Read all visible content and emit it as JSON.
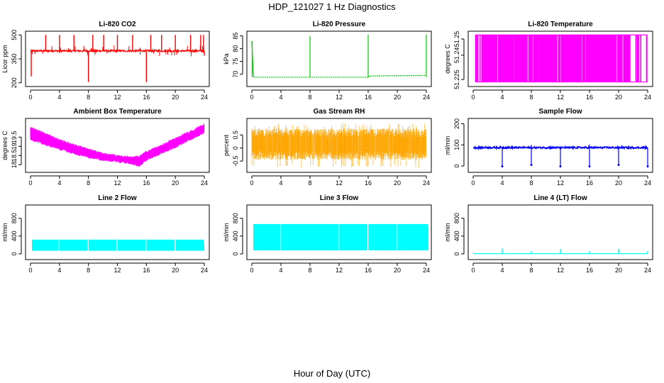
{
  "figure": {
    "title": "HDP_121027  1 Hz Diagnostics",
    "xlabel": "Hour of Day (UTC)"
  },
  "chart_data": [
    {
      "id": "co2",
      "type": "line",
      "title": "Li-820 CO2",
      "ylabel": "Licor ppm",
      "color": "#ff0000",
      "xlim": [
        0,
        24
      ],
      "ylim": [
        190,
        510
      ],
      "xticks": [
        0,
        4,
        8,
        12,
        16,
        20,
        24
      ],
      "yticks": [
        200,
        350,
        500
      ],
      "pattern": "spiky",
      "series": {
        "baseline": 400,
        "noise": 6,
        "spikes_up": [
          [
            2.1,
            500
          ],
          [
            4,
            500
          ],
          [
            6,
            500
          ],
          [
            8.6,
            500
          ],
          [
            10.1,
            500
          ],
          [
            12,
            500
          ],
          [
            14.1,
            500
          ],
          [
            16.6,
            500
          ],
          [
            18.1,
            500
          ],
          [
            20,
            500
          ],
          [
            22.1,
            500
          ],
          [
            23.5,
            500
          ],
          [
            23.9,
            500
          ]
        ],
        "spikes_down": [
          [
            0.1,
            240
          ],
          [
            8,
            205
          ],
          [
            16,
            205
          ],
          [
            24,
            370
          ]
        ]
      }
    },
    {
      "id": "pressure",
      "type": "line",
      "title": "Li-820 Pressure",
      "ylabel": "kPa",
      "color": "#00cc00",
      "xlim": [
        0,
        24
      ],
      "ylim": [
        66,
        86
      ],
      "xticks": [
        0,
        4,
        8,
        12,
        16,
        20,
        24
      ],
      "yticks": [
        70,
        75,
        80,
        85
      ],
      "pattern": "pressure",
      "series": {
        "segments": [
          [
            0.3,
            68.8
          ],
          [
            16.1,
            68.8
          ],
          [
            16.2,
            69.3
          ],
          [
            23.9,
            69.5
          ]
        ],
        "spikes": [
          [
            0.05,
            83
          ],
          [
            8,
            85
          ],
          [
            16,
            85.5
          ],
          [
            24,
            85.5
          ]
        ]
      }
    },
    {
      "id": "licor_temp",
      "type": "line",
      "title": "Li-820 Temperature",
      "ylabel": "degrees C",
      "color": "#ff00ff",
      "xlim": [
        0,
        24
      ],
      "ylim": [
        51.222,
        51.2535
      ],
      "xticks": [
        0,
        4,
        8,
        12,
        16,
        20,
        24
      ],
      "yticks": [
        51.225,
        51.24,
        51.25
      ],
      "pattern": "quantized",
      "series": {
        "levels": [
          51.2235,
          51.2525
        ],
        "gaps": [
          [
            0.7,
            0.9
          ],
          [
            1,
            1.15
          ],
          [
            3.3,
            3.45
          ],
          [
            5.55,
            5.62
          ],
          [
            7.45,
            7.6
          ],
          [
            8.15,
            8.25
          ],
          [
            9,
            9.08
          ],
          [
            11.55,
            11.7
          ],
          [
            12,
            12.12
          ],
          [
            14.9,
            15.02
          ],
          [
            15.4,
            15.5
          ],
          [
            19.7,
            19.85
          ],
          [
            20.5,
            20.65
          ],
          [
            21.6,
            22.35
          ],
          [
            22.45,
            22.55
          ],
          [
            22.8,
            23
          ],
          [
            23.1,
            23.8
          ]
        ]
      }
    },
    {
      "id": "ambient_temp",
      "type": "line",
      "title": "Ambient Box Temperature",
      "ylabel": "degrees C",
      "color": "#ff00ff",
      "xlim": [
        0,
        24
      ],
      "ylim": [
        17.7,
        20.4
      ],
      "xticks": [
        0,
        4,
        8,
        12,
        16,
        20,
        24
      ],
      "yticks": [
        18,
        18.5,
        19,
        19.5
      ],
      "pattern": "band",
      "series": {
        "x": [
          0,
          2,
          4,
          6,
          8,
          10,
          12,
          14,
          15,
          16,
          18,
          20,
          22,
          24
        ],
        "low": [
          19.3,
          19.05,
          18.8,
          18.55,
          18.35,
          18.2,
          18.1,
          18.0,
          17.85,
          18.2,
          18.55,
          18.9,
          19.3,
          19.7
        ],
        "high": [
          20.1,
          19.75,
          19.4,
          19.15,
          18.9,
          18.65,
          18.55,
          18.45,
          18.5,
          18.75,
          19.1,
          19.5,
          19.85,
          20.25
        ]
      }
    },
    {
      "id": "rh",
      "type": "line",
      "title": "Gas Stream RH",
      "ylabel": "percent",
      "color": "#ffa500",
      "xlim": [
        0,
        24
      ],
      "ylim": [
        -0.85,
        1.05
      ],
      "xticks": [
        0,
        4,
        8,
        12,
        16,
        20,
        24
      ],
      "yticks": [
        -0.5,
        0,
        0.5
      ],
      "pattern": "noise",
      "series": {
        "center": 0.15,
        "band": [
          -0.45,
          0.75
        ],
        "extremes": [
          -0.75,
          0.95
        ]
      }
    },
    {
      "id": "sample_flow",
      "type": "line",
      "title": "Sample Flow",
      "ylabel": "ml/min",
      "color": "#0000ff",
      "xlim": [
        0,
        24
      ],
      "ylim": [
        -20,
        215
      ],
      "xticks": [
        0,
        4,
        8,
        12,
        16,
        20,
        24
      ],
      "yticks": [
        0,
        100,
        200
      ],
      "pattern": "flowdips",
      "series": {
        "level": 87,
        "noise": 4,
        "dips": [
          [
            4,
            -2
          ],
          [
            8,
            5
          ],
          [
            12,
            -2
          ],
          [
            16,
            -2
          ],
          [
            20,
            5
          ],
          [
            24,
            -2
          ]
        ],
        "spikes": [
          [
            8,
            100
          ],
          [
            16,
            102
          ]
        ]
      }
    },
    {
      "id": "line2",
      "type": "line",
      "title": "Line 2 Flow",
      "ylabel": "ml/min",
      "color": "#00ffff",
      "xlim": [
        0,
        24
      ],
      "ylim": [
        -80,
        1050
      ],
      "xticks": [
        0,
        4,
        8,
        12,
        16,
        20,
        24
      ],
      "yticks": [
        0,
        400,
        800
      ],
      "pattern": "blocks",
      "series": {
        "low": 70,
        "high": 320,
        "start": 0.2,
        "end": 23.9,
        "gaps": [
          3.9,
          7.9,
          11.9,
          15.9,
          19.9
        ],
        "tail": 250
      }
    },
    {
      "id": "line3",
      "type": "line",
      "title": "Line 3 Flow",
      "ylabel": "ml/min",
      "color": "#00ffff",
      "xlim": [
        0,
        24
      ],
      "ylim": [
        -80,
        1050
      ],
      "xticks": [
        0,
        4,
        8,
        12,
        16,
        20,
        24
      ],
      "yticks": [
        0,
        400,
        800
      ],
      "pattern": "blocks",
      "series": {
        "low": 80,
        "high": 670,
        "start": 0.2,
        "end": 24.2,
        "gaps": [
          3.9,
          11.9,
          15.9,
          19.9
        ],
        "tail": 600
      }
    },
    {
      "id": "line4",
      "type": "line",
      "title": "Line 4 (LT) Flow",
      "ylabel": "ml/min",
      "color": "#00ffff",
      "xlim": [
        0,
        24
      ],
      "ylim": [
        -80,
        1050
      ],
      "xticks": [
        0,
        4,
        8,
        12,
        16,
        20,
        24
      ],
      "yticks": [
        0,
        400,
        800
      ],
      "pattern": "baseline",
      "series": {
        "level": 5,
        "spikes": [
          [
            4,
            120
          ],
          [
            8,
            60
          ],
          [
            12,
            110
          ],
          [
            16,
            60
          ],
          [
            20,
            115
          ],
          [
            24,
            60
          ]
        ]
      }
    }
  ]
}
